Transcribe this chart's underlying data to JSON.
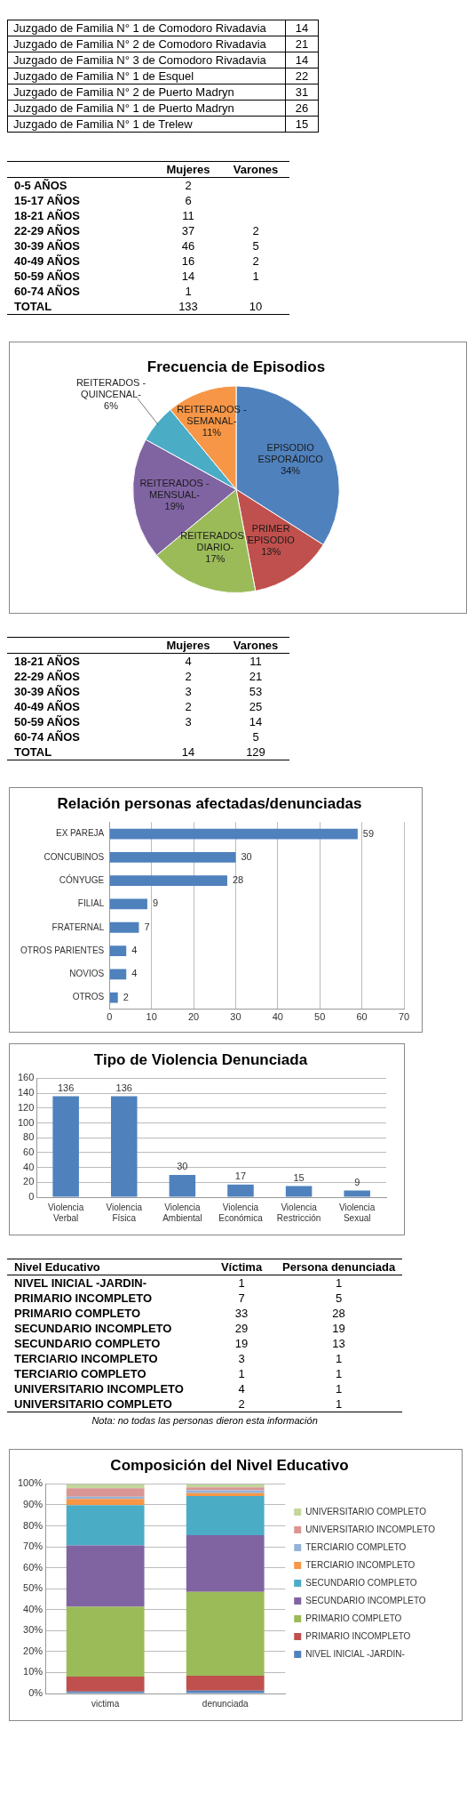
{
  "chart_data": [
    {
      "type": "other",
      "categories": [
        "Juzgado de Familia N° 1 de Comodoro Rivadavia",
        "Juzgado de Familia N° 2 de Comodoro Rivadavia",
        "Juzgado de Familia N° 3 de Comodoro Rivadavia",
        "Juzgado de Familia N° 1 de Esquel",
        "Juzgado de Familia N° 2 de Puerto Madryn",
        "Juzgado de Familia N° 1 de Puerto Madryn",
        "Juzgado de Familia N° 1 de Trelew"
      ],
      "values": [
        14,
        21,
        14,
        22,
        31,
        26,
        15
      ],
      "data_labels": true
    },
    {
      "type": "other",
      "categories": [
        "0-5 AÑOS",
        "15-17 AÑOS",
        "18-21 AÑOS",
        "22-29 AÑOS",
        "30-39 AÑOS",
        "40-49 AÑOS",
        "50-59 AÑOS",
        "60-74 AÑOS",
        "TOTAL"
      ],
      "data_labels": true,
      "series": [
        {
          "name": "Mujeres",
          "values": [
            2,
            6,
            11,
            37,
            46,
            16,
            14,
            1,
            133
          ]
        },
        {
          "name": "Varones",
          "values": [
            null,
            null,
            null,
            2,
            5,
            2,
            1,
            null,
            10
          ]
        }
      ]
    },
    {
      "type": "pie",
      "title": "Frecuencia de Episodios",
      "categories": [
        "EPISODIO ESPORÁDICO",
        "PRIMER EPISODIO",
        "REITERADOS - DIARIO-",
        "REITERADOS - MENSUAL-",
        "REITERADOS - QUINCENAL-",
        "REITERADOS - SEMANAL-"
      ],
      "values": [
        34,
        13,
        17,
        19,
        6,
        11
      ],
      "value_labels": [
        "34%",
        "13%",
        "17%",
        "19%",
        "6%",
        "11%"
      ],
      "colors": [
        "#4f81bd",
        "#c0504d",
        "#9bbb59",
        "#8064a2",
        "#4bacc6",
        "#f79646"
      ]
    },
    {
      "type": "other",
      "categories": [
        "18-21 AÑOS",
        "22-29 AÑOS",
        "30-39 AÑOS",
        "40-49 AÑOS",
        "50-59 AÑOS",
        "60-74 AÑOS",
        "TOTAL"
      ],
      "data_labels": true,
      "series": [
        {
          "name": "Mujeres",
          "values": [
            4,
            2,
            3,
            2,
            3,
            null,
            14
          ]
        },
        {
          "name": "Varones",
          "values": [
            11,
            21,
            53,
            25,
            14,
            5,
            129
          ]
        }
      ]
    },
    {
      "type": "bar",
      "orientation": "horizontal",
      "title": "Relación personas afectadas/denunciadas",
      "categories": [
        "EX PAREJA",
        "CONCUBINOS",
        "CÓNYUGE",
        "FILIAL",
        "FRATERNAL",
        "OTROS PARIENTES",
        "NOVIOS",
        "OTROS"
      ],
      "values": [
        59,
        30,
        28,
        9,
        7,
        4,
        4,
        2
      ],
      "color": "#4f81bd",
      "xlim": [
        0,
        70
      ],
      "xticks": [
        0,
        10,
        20,
        30,
        40,
        50,
        60,
        70
      ],
      "grid": "x",
      "data_labels": true
    },
    {
      "type": "bar",
      "title": "Tipo de Violencia Denunciada",
      "categories": [
        "Violencia Verbal",
        "Violencia Física",
        "Violencia Ambiental",
        "Violencia Económica",
        "Violencia Restricción",
        "Violencia Sexual"
      ],
      "values": [
        136,
        136,
        30,
        17,
        15,
        9
      ],
      "color": "#4f81bd",
      "ylim": [
        0,
        160
      ],
      "yticks": [
        0,
        20,
        40,
        60,
        80,
        100,
        120,
        140,
        160
      ],
      "grid": "y",
      "data_labels": true
    },
    {
      "type": "other",
      "xlabel": "Nivel Educativo",
      "categories": [
        "NIVEL INICIAL -JARDIN-",
        "PRIMARIO INCOMPLETO",
        "PRIMARIO COMPLETO",
        "SECUNDARIO INCOMPLETO",
        "SECUNDARIO COMPLETO",
        "TERCIARIO INCOMPLETO",
        "TERCIARIO COMPLETO",
        "UNIVERSITARIO INCOMPLETO",
        "UNIVERSITARIO COMPLETO"
      ],
      "data_labels": true,
      "annotations": [
        "Nota: no todas las personas dieron esta información"
      ],
      "series": [
        {
          "name": "Víctima",
          "values": [
            1,
            7,
            33,
            29,
            19,
            3,
            1,
            4,
            2
          ]
        },
        {
          "name": "Persona denunciada",
          "values": [
            1,
            5,
            28,
            19,
            13,
            1,
            1,
            1,
            1
          ]
        }
      ]
    },
    {
      "type": "bar",
      "stacked": true,
      "title": "Composición del Nivel Educativo",
      "categories": [
        "victima",
        "denunciada"
      ],
      "ylim": [
        0,
        100
      ],
      "yticks": [
        {
          "value": 0,
          "label": "0%"
        },
        {
          "value": 10,
          "label": "10%"
        },
        {
          "value": 20,
          "label": "20%"
        },
        {
          "value": 30,
          "label": "30%"
        },
        {
          "value": 40,
          "label": "40%"
        },
        {
          "value": 50,
          "label": "50%"
        },
        {
          "value": 60,
          "label": "60%"
        },
        {
          "value": 70,
          "label": "70%"
        },
        {
          "value": 80,
          "label": "80%"
        },
        {
          "value": 90,
          "label": "90%"
        },
        {
          "value": 100,
          "label": "100%"
        }
      ],
      "grid": "y",
      "legend": "right",
      "series": [
        {
          "name": "NIVEL INICIAL -JARDIN-",
          "color": "#4f81bd",
          "values": [
            1,
            1.4
          ]
        },
        {
          "name": "PRIMARIO INCOMPLETO",
          "color": "#c0504d",
          "values": [
            7.1,
            7.1
          ]
        },
        {
          "name": "PRIMARIO COMPLETO",
          "color": "#9bbb59",
          "values": [
            33.3,
            40
          ]
        },
        {
          "name": "SECUNDARIO INCOMPLETO",
          "color": "#8064a2",
          "values": [
            29.3,
            27.1
          ]
        },
        {
          "name": "SECUNDARIO COMPLETO",
          "color": "#4bacc6",
          "values": [
            19.2,
            18.6
          ]
        },
        {
          "name": "TERCIARIO INCOMPLETO",
          "color": "#f79646",
          "values": [
            3,
            1.4
          ]
        },
        {
          "name": "TERCIARIO COMPLETO",
          "color": "#95b3d7",
          "values": [
            1,
            1.4
          ]
        },
        {
          "name": "UNIVERSITARIO INCOMPLETO",
          "color": "#d99694",
          "values": [
            4,
            1.4
          ]
        },
        {
          "name": "UNIVERSITARIO COMPLETO",
          "color": "#c3d69b",
          "values": [
            2,
            1.4
          ]
        }
      ]
    }
  ]
}
